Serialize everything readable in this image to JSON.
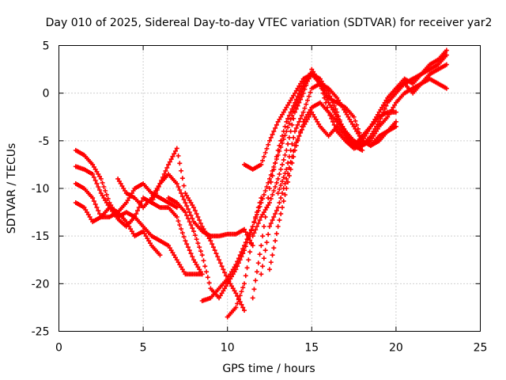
{
  "chart_data": {
    "type": "scatter",
    "title": "Day 010 of 2025, Sidereal Day-to-day VTEC variation (SDTVAR) for receiver yar2",
    "xlabel": "GPS time / hours",
    "ylabel": "SDTVAR / TECUs",
    "xlim": [
      0,
      25
    ],
    "ylim": [
      -25,
      5
    ],
    "xticks": [
      0,
      5,
      10,
      15,
      20,
      25
    ],
    "yticks": [
      -25,
      -20,
      -15,
      -10,
      -5,
      0,
      5
    ],
    "grid": true,
    "marker": "+",
    "color": "#ff0000",
    "series": [
      {
        "x": [
          1.0,
          1.5,
          2.0,
          2.5,
          3.0,
          3.5,
          4.0,
          4.5,
          5.0,
          5.5,
          6.0,
          6.5,
          7.0,
          7.5,
          8.0,
          8.5
        ],
        "y": [
          -6.0,
          -6.5,
          -7.5,
          -9.0,
          -11.5,
          -13.0,
          -12.5,
          -13.0,
          -14.0,
          -15.0,
          -15.5,
          -16.0,
          -17.5,
          -19.0,
          -19.0,
          -19.0
        ]
      },
      {
        "x": [
          1.0,
          1.5,
          2.0,
          2.5,
          3.0,
          3.5,
          4.0,
          4.5,
          5.0,
          5.5,
          6.0,
          6.5,
          7.0,
          7.5,
          8.0,
          8.5
        ],
        "y": [
          -7.7,
          -8.0,
          -8.5,
          -10.5,
          -12.0,
          -13.2,
          -14.0,
          -13.0,
          -11.0,
          -11.5,
          -12.0,
          -12.0,
          -13.0,
          -15.5,
          -17.5,
          -19.0
        ]
      },
      {
        "x": [
          1.0,
          1.5,
          2.0,
          2.5,
          3.0,
          3.5,
          4.0,
          4.5,
          5.0,
          5.5,
          6.0,
          6.5,
          7.0
        ],
        "y": [
          -9.5,
          -10.0,
          -11.0,
          -13.0,
          -13.0,
          -12.5,
          -11.5,
          -10.0,
          -9.5,
          -10.5,
          -11.0,
          -11.5,
          -12.0
        ]
      },
      {
        "x": [
          1.0,
          1.5,
          2.0,
          2.5,
          3.0,
          3.5,
          4.0,
          4.5,
          5.0,
          5.5,
          6.0
        ],
        "y": [
          -11.5,
          -12.0,
          -13.5,
          -13.0,
          -12.0,
          -12.5,
          -13.5,
          -15.0,
          -14.5,
          -16.0,
          -17.0
        ]
      },
      {
        "x": [
          3.5,
          4.0,
          4.5,
          5.0,
          5.5,
          6.0,
          6.5,
          7.0,
          7.5,
          8.0,
          8.5,
          9.0,
          9.5,
          10.0,
          10.5,
          11.0,
          11.5
        ],
        "y": [
          -9.0,
          -10.5,
          -11.0,
          -12.0,
          -11.0,
          -9.5,
          -8.5,
          -9.5,
          -11.5,
          -13.5,
          -14.5,
          -15.0,
          -15.0,
          -14.8,
          -14.8,
          -14.3,
          -16.0
        ]
      },
      {
        "x": [
          5.5,
          6.0,
          6.5,
          7.0,
          7.5,
          8.0,
          8.5,
          9.0,
          9.5,
          10.0,
          10.5,
          11.0
        ],
        "y": [
          -11.5,
          -9.5,
          -7.5,
          -5.8,
          -10.5,
          -12.0,
          -14.0,
          -15.5,
          -17.5,
          -19.5,
          -21.0,
          -22.8
        ]
      },
      {
        "x": [
          6.5,
          7.0,
          7.5,
          8.0,
          8.5,
          9.0,
          9.5,
          10.0,
          10.5,
          11.0,
          11.5,
          12.0
        ],
        "y": [
          -11.0,
          -11.5,
          -12.5,
          -14.5,
          -17.0,
          -20.5,
          -21.5,
          -20.0,
          -18.5,
          -16.5,
          -14.0,
          -11.0
        ]
      },
      {
        "x": [
          8.5,
          9.0,
          9.5,
          10.0,
          10.5,
          11.0,
          11.5,
          12.0,
          12.5,
          13.0,
          13.5,
          14.0,
          14.5,
          15.0,
          15.5,
          16.0,
          16.5,
          17.0,
          17.5,
          18.0
        ],
        "y": [
          -21.8,
          -21.5,
          -20.5,
          -19.5,
          -18.0,
          -16.0,
          -14.0,
          -11.5,
          -9.0,
          -6.5,
          -4.0,
          -1.5,
          0.5,
          2.0,
          1.5,
          0.0,
          -2.0,
          -4.5,
          -5.5,
          -6.0
        ]
      },
      {
        "x": [
          10.0,
          10.5,
          11.0,
          11.5,
          12.0,
          12.5,
          13.0,
          13.5,
          14.0,
          14.5,
          15.0,
          15.5,
          16.0,
          16.5,
          17.0,
          17.5,
          18.0,
          18.5,
          19.0,
          19.5,
          20.0
        ],
        "y": [
          -23.5,
          -22.5,
          -20.0,
          -15.0,
          -13.0,
          -11.5,
          -9.0,
          -6.0,
          -2.0,
          0.0,
          2.5,
          1.0,
          -1.0,
          -2.5,
          -4.0,
          -5.5,
          -4.5,
          -3.5,
          -2.5,
          -2.0,
          -2.0
        ]
      },
      {
        "x": [
          11.0,
          11.5,
          12.0,
          12.5,
          13.0,
          13.5,
          14.0,
          14.5,
          15.0,
          15.5,
          16.0,
          16.5,
          17.0,
          17.5,
          18.0,
          18.5,
          19.0,
          19.5,
          20.0
        ],
        "y": [
          -7.5,
          -8.0,
          -7.5,
          -5.0,
          -3.0,
          -1.5,
          0.0,
          1.5,
          2.0,
          1.0,
          -0.5,
          -1.0,
          -1.5,
          -2.5,
          -5.0,
          -5.5,
          -4.5,
          -4.0,
          -3.5
        ]
      },
      {
        "x": [
          11.5,
          12.0,
          12.5,
          13.0,
          13.5,
          14.0,
          14.5,
          15.0,
          15.5,
          16.0,
          16.5,
          17.0,
          17.5,
          18.0,
          18.5,
          19.0,
          19.5,
          20.0,
          20.5,
          21.0
        ],
        "y": [
          -21.5,
          -16.0,
          -10.0,
          -6.0,
          -3.0,
          -1.0,
          1.0,
          2.0,
          1.0,
          -2.0,
          -4.0,
          -5.0,
          -5.8,
          -5.5,
          -4.5,
          -3.0,
          -1.0,
          0.0,
          1.0,
          1.5
        ]
      },
      {
        "x": [
          12.0,
          12.5,
          13.0,
          13.5,
          14.0,
          14.5,
          15.0,
          15.5,
          16.0,
          16.5,
          17.0,
          17.5,
          18.0,
          18.5,
          19.0,
          19.5,
          20.0,
          20.5,
          21.0,
          21.5,
          22.0,
          22.5,
          23.0
        ],
        "y": [
          -19.0,
          -14.0,
          -12.0,
          -9.0,
          -5.5,
          -3.5,
          -2.0,
          -3.5,
          -4.5,
          -3.5,
          -4.5,
          -5.5,
          -5.0,
          -3.5,
          -2.0,
          -0.5,
          0.5,
          1.0,
          1.5,
          2.0,
          3.0,
          3.5,
          4.5
        ]
      },
      {
        "x": [
          12.5,
          13.0,
          13.5,
          14.0,
          14.5,
          15.0,
          15.5,
          16.0,
          16.5,
          17.0,
          17.5,
          18.0,
          18.5,
          19.0,
          19.5,
          20.0,
          20.5,
          21.0,
          21.5,
          22.0,
          22.5,
          23.0
        ],
        "y": [
          -18.5,
          -14.0,
          -10.0,
          -6.0,
          -3.0,
          -1.5,
          -1.0,
          -2.0,
          -3.0,
          -4.0,
          -5.0,
          -5.5,
          -5.0,
          -3.5,
          -2.5,
          -1.0,
          0.0,
          0.5,
          1.0,
          1.5,
          1.0,
          0.5
        ]
      },
      {
        "x": [
          13.0,
          13.5,
          14.0,
          14.5,
          15.0,
          15.5,
          16.0,
          16.5,
          17.0,
          17.5,
          18.0,
          18.5,
          19.0,
          19.5,
          20.0
        ],
        "y": [
          -10.5,
          -8.0,
          -4.0,
          -2.0,
          0.5,
          1.0,
          0.5,
          -0.5,
          -2.0,
          -3.5,
          -5.0,
          -5.5,
          -5.0,
          -4.0,
          -3.0
        ]
      },
      {
        "x": [
          20.0,
          20.5,
          21.0,
          21.5,
          22.0,
          22.5,
          23.0
        ],
        "y": [
          0.5,
          1.5,
          1.0,
          2.0,
          2.5,
          3.0,
          4.0
        ]
      },
      {
        "x": [
          20.5,
          21.0,
          21.5,
          22.0,
          22.5,
          23.0
        ],
        "y": [
          1.0,
          0.0,
          1.0,
          2.0,
          2.5,
          3.0
        ]
      }
    ]
  }
}
